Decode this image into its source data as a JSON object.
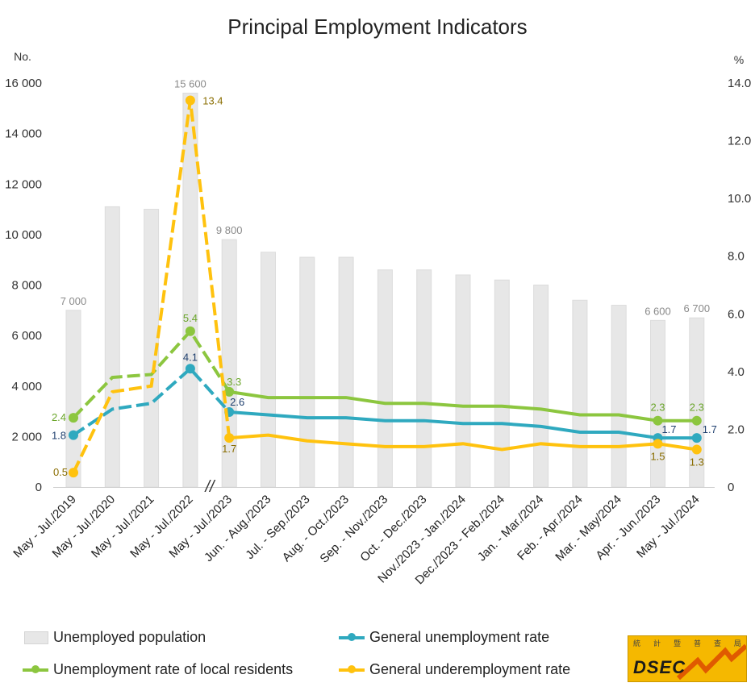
{
  "chart_data": {
    "type": "bar-line-combo",
    "title": "Principal Employment Indicators",
    "y_left_unit": "No.",
    "y_right_unit": "%",
    "y_left_ticks": [
      "0",
      "2 000",
      "4 000",
      "6 000",
      "8 000",
      "10 000",
      "12 000",
      "14 000",
      "16 000"
    ],
    "y_right_ticks": [
      "0",
      "2.0",
      "4.0",
      "6.0",
      "8.0",
      "10.0",
      "12.0",
      "14.0"
    ],
    "ylim_left": [
      0,
      16000
    ],
    "ylim_right": [
      0,
      14
    ],
    "axis_break_mark": "//",
    "categories": [
      "May - Jul./2019",
      "May - Jul./2020",
      "May - Jul./2021",
      "May - Jul./2022",
      "May - Jul./2023",
      "Jun. - Aug./2023",
      "Jul. - Sep./2023",
      "Aug. - Oct./2023",
      "Sep. - Nov./2023",
      "Oct. - Dec./2023",
      "Nov./2023 - Jan./2024",
      "Dec./2023 - Feb./2024",
      "Jan. - Mar./2024",
      "Feb. - Apr./2024",
      "Mar. - May/2024",
      "Apr. - Jun./2023",
      "May - Jul./2024"
    ],
    "bars": {
      "name": "Unemployed population",
      "color": "#e7e7e7",
      "values": [
        7000,
        11100,
        11000,
        15600,
        9800,
        9300,
        9100,
        9100,
        8600,
        8600,
        8400,
        8200,
        8000,
        7400,
        7200,
        6600,
        6700
      ],
      "labels": [
        "7 000",
        "",
        "",
        "15 600",
        "9 800",
        "",
        "",
        "",
        "",
        "",
        "",
        "",
        "",
        "",
        "",
        "6 600",
        "6 700"
      ]
    },
    "series": [
      {
        "name": "Unemployment rate of local residents",
        "color": "#8cc63f",
        "values": [
          2.4,
          3.8,
          3.9,
          5.4,
          3.3,
          3.1,
          3.1,
          3.1,
          2.9,
          2.9,
          2.8,
          2.8,
          2.7,
          2.5,
          2.5,
          2.3,
          2.3
        ],
        "labels": [
          "2.4",
          "",
          "",
          "5.4",
          "3.3",
          "",
          "",
          "",
          "",
          "",
          "",
          "",
          "",
          "",
          "",
          "2.3",
          "2.3"
        ],
        "label_color": "#6aa52a"
      },
      {
        "name": "General unemployment rate",
        "color": "#2fa9bf",
        "values": [
          1.8,
          2.7,
          2.9,
          4.1,
          2.6,
          2.5,
          2.4,
          2.4,
          2.3,
          2.3,
          2.2,
          2.2,
          2.1,
          1.9,
          1.9,
          1.7,
          1.7
        ],
        "labels": [
          "1.8",
          "",
          "",
          "4.1",
          "2.6",
          "",
          "",
          "",
          "",
          "",
          "",
          "",
          "",
          "",
          "",
          "1.7",
          "1.7"
        ],
        "label_color": "#1f3f6e"
      },
      {
        "name": "General underemployment rate",
        "color": "#ffc20e",
        "values": [
          0.5,
          3.3,
          3.5,
          13.4,
          1.7,
          1.8,
          1.6,
          1.5,
          1.4,
          1.4,
          1.5,
          1.3,
          1.5,
          1.4,
          1.4,
          1.5,
          1.3
        ],
        "labels": [
          "0.5",
          "",
          "",
          "13.4",
          "1.7",
          "",
          "",
          "",
          "",
          "",
          "",
          "",
          "",
          "",
          "",
          "1.5",
          "1.3"
        ],
        "label_color": "#8a6d00"
      }
    ],
    "legend_placement": "bottom"
  },
  "logo": {
    "text": "DSEC",
    "chars": [
      "統",
      "計",
      "暨",
      "普",
      "查",
      "局"
    ]
  }
}
